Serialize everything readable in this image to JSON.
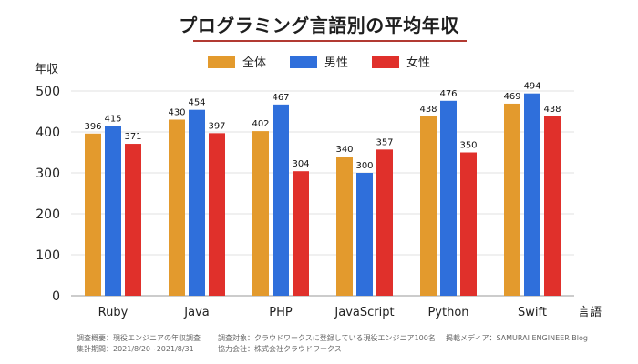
{
  "chart_data": {
    "type": "bar",
    "title": "プログラミング言語別の平均年収",
    "ylabel": "年収",
    "xlabel": "言語",
    "ylim": [
      0,
      500
    ],
    "yticks": [
      0,
      100,
      200,
      300,
      400,
      500
    ],
    "legend_position": "top-center",
    "categories": [
      "Ruby",
      "Java",
      "PHP",
      "JavaScript",
      "Python",
      "Swift"
    ],
    "series": [
      {
        "name": "全体",
        "color": "#e39a2d",
        "values": [
          396,
          430,
          402,
          340,
          438,
          469
        ]
      },
      {
        "name": "男性",
        "color": "#2f6fdb",
        "values": [
          415,
          454,
          467,
          300,
          476,
          494
        ]
      },
      {
        "name": "女性",
        "color": "#e0302b",
        "values": [
          371,
          397,
          304,
          357,
          350,
          438
        ]
      }
    ]
  },
  "footer": {
    "survey": "調査概要：現役エンジニアの年収調査",
    "period": "集計期間：2021/8/20~2021/8/31",
    "target": "調査対象：クラウドワークスに登録している現役エンジニア100名",
    "partner": "協力会社：株式会社クラウドワークス",
    "media": "掲載メディア：SAMURAI ENGINEER Blog"
  }
}
